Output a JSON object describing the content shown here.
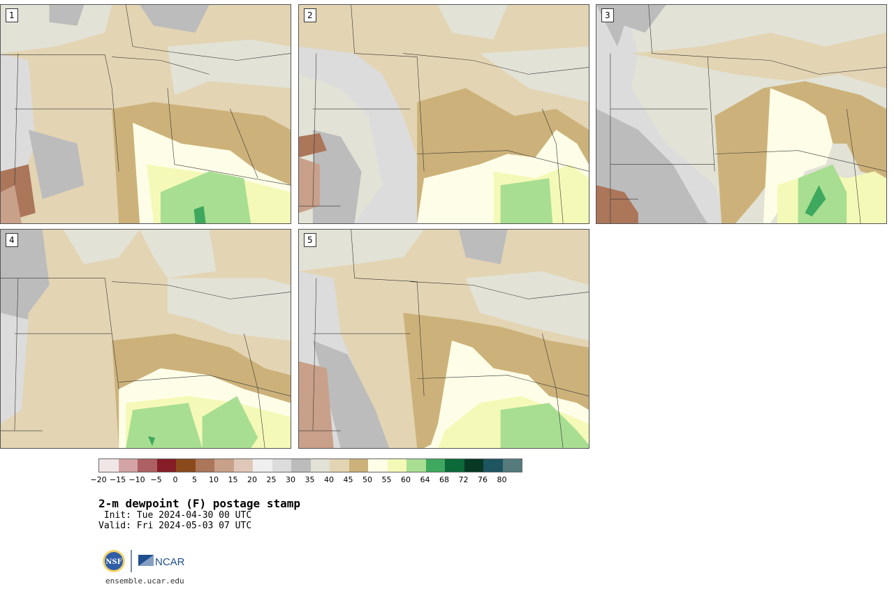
{
  "panels": [
    {
      "label": "1"
    },
    {
      "label": "2"
    },
    {
      "label": "3"
    },
    {
      "label": "4"
    },
    {
      "label": "5"
    }
  ],
  "colorbar": {
    "colors": [
      "#f1e6e6",
      "#d4a3a6",
      "#ad5f62",
      "#861d27",
      "#8a4a1c",
      "#ab765a",
      "#c9a08a",
      "#e0c8b8",
      "#efefef",
      "#dcdcdc",
      "#bcbcbc",
      "#e2e2d6",
      "#e3d4b3",
      "#ccb27a",
      "#fefee8",
      "#f5f9b8",
      "#a8de92",
      "#3ea85e",
      "#0c6939",
      "#073925",
      "#1e5560",
      "#557b7c"
    ],
    "ticks": [
      "−20",
      "−15",
      "−10",
      "−5",
      "0",
      "5",
      "10",
      "15",
      "20",
      "25",
      "30",
      "35",
      "40",
      "45",
      "50",
      "55",
      "60",
      "64",
      "68",
      "72",
      "76",
      "80"
    ]
  },
  "title": "2-m dewpoint (F) postage stamp",
  "init": " Init: Tue 2024-04-30 00 UTC",
  "valid": "Valid: Fri 2024-05-03 07 UTC",
  "logo": {
    "nsf": "NSF",
    "ncar": "NCAR"
  },
  "site": "ensemble.ucar.edu"
}
